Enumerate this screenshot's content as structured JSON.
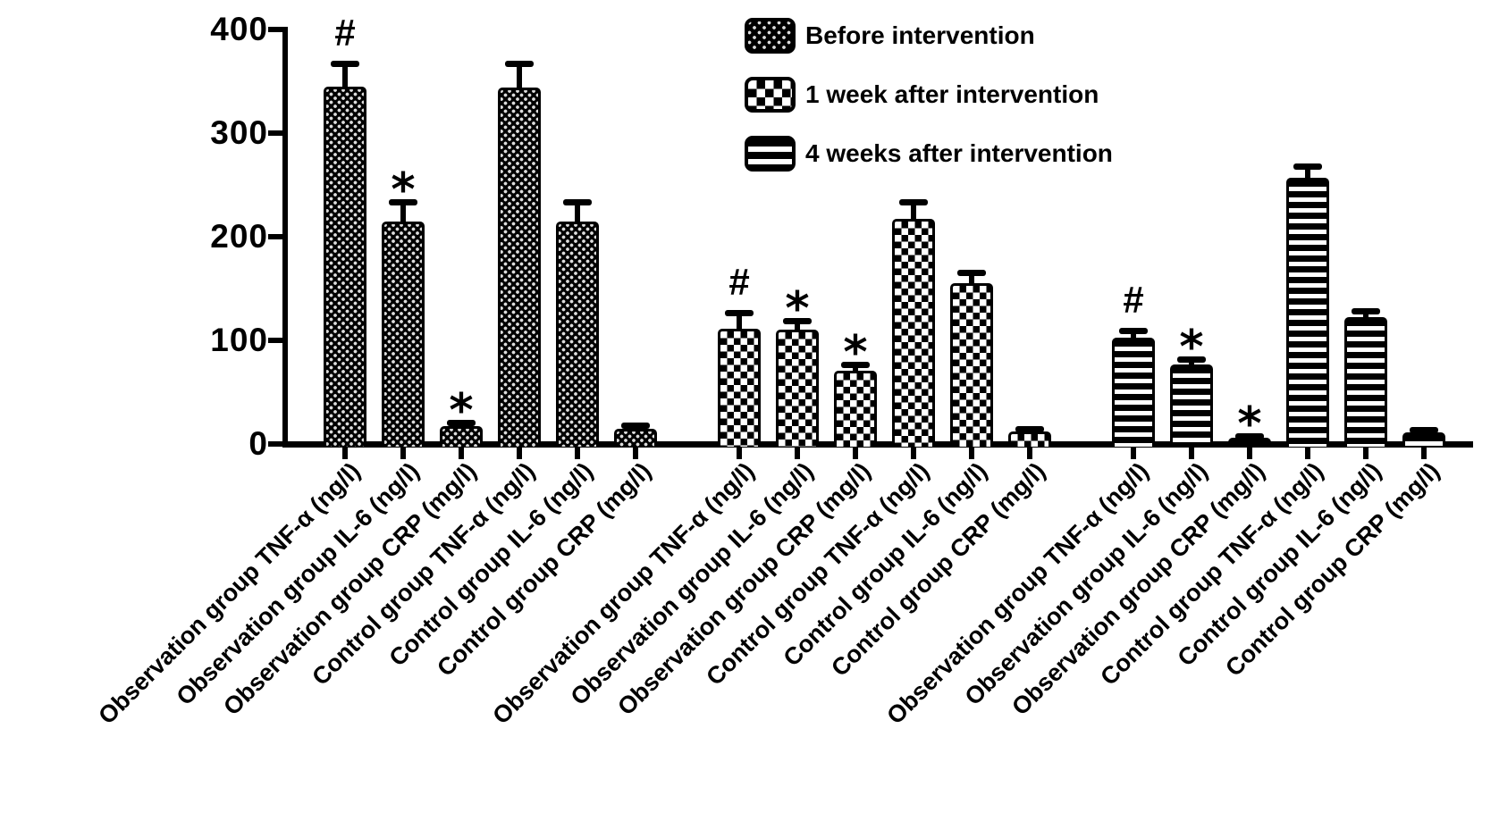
{
  "figure": {
    "background_color": "#ffffff",
    "ink_color": "#000000"
  },
  "legend": [
    {
      "label": "Before intervention",
      "pattern": "dots"
    },
    {
      "label": "1 week after intervention",
      "pattern": "checker"
    },
    {
      "label": "4 weeks after intervention",
      "pattern": "hlines"
    }
  ],
  "chart_data": {
    "type": "bar",
    "title": "",
    "xlabel": "",
    "ylabel": "",
    "ylim": [
      0,
      400
    ],
    "yticks": [
      "0",
      "100",
      "200",
      "300",
      "400"
    ],
    "grid": false,
    "legend_position": "top-center",
    "error_bars": "upper SD whiskers with caps",
    "groups": [
      {
        "name": "Before intervention",
        "pattern": "dots",
        "bars": [
          {
            "label": "Observation group TNF-α (ng/l)",
            "value": 345,
            "error_top": 366,
            "annotation": "#"
          },
          {
            "label": "Observation group IL-6 (ng/l)",
            "value": 215,
            "error_top": 233,
            "annotation": "*"
          },
          {
            "label": "Observation group CRP (mg/l)",
            "value": 17,
            "error_top": 20,
            "annotation": "*"
          },
          {
            "label": "Control group TNF-α (ng/l)",
            "value": 344,
            "error_top": 366,
            "annotation": ""
          },
          {
            "label": "Control group IL-6 (ng/l)",
            "value": 215,
            "error_top": 233,
            "annotation": ""
          },
          {
            "label": "Control group CRP (mg/l)",
            "value": 15,
            "error_top": 17,
            "annotation": ""
          }
        ]
      },
      {
        "name": "1 week after intervention",
        "pattern": "checker",
        "bars": [
          {
            "label": "Observation group TNF-α (ng/l)",
            "value": 111,
            "error_top": 126,
            "annotation": "#"
          },
          {
            "label": "Observation group IL-6 (ng/l)",
            "value": 110,
            "error_top": 118,
            "annotation": "*"
          },
          {
            "label": "Observation group CRP (mg/l)",
            "value": 71,
            "error_top": 76,
            "annotation": "*"
          },
          {
            "label": "Control group TNF-α (ng/l)",
            "value": 217,
            "error_top": 233,
            "annotation": ""
          },
          {
            "label": "Control group IL-6 (ng/l)",
            "value": 155,
            "error_top": 165,
            "annotation": ""
          },
          {
            "label": "Control group CRP (mg/l)",
            "value": 12,
            "error_top": 14,
            "annotation": ""
          }
        ]
      },
      {
        "name": "4 weeks after intervention",
        "pattern": "hlines",
        "bars": [
          {
            "label": "Observation group TNF-α (ng/l)",
            "value": 103,
            "error_top": 109,
            "annotation": "#"
          },
          {
            "label": "Observation group IL-6 (ng/l)",
            "value": 77,
            "error_top": 81,
            "annotation": "*"
          },
          {
            "label": "Observation group CRP (mg/l)",
            "value": 6,
            "error_top": 7,
            "annotation": "*"
          },
          {
            "label": "Control group TNF-α (ng/l)",
            "value": 257,
            "error_top": 267,
            "annotation": ""
          },
          {
            "label": "Control group IL-6 (ng/l)",
            "value": 122,
            "error_top": 128,
            "annotation": ""
          },
          {
            "label": "Control group CRP (mg/l)",
            "value": 11,
            "error_top": 13,
            "annotation": ""
          }
        ]
      }
    ]
  }
}
